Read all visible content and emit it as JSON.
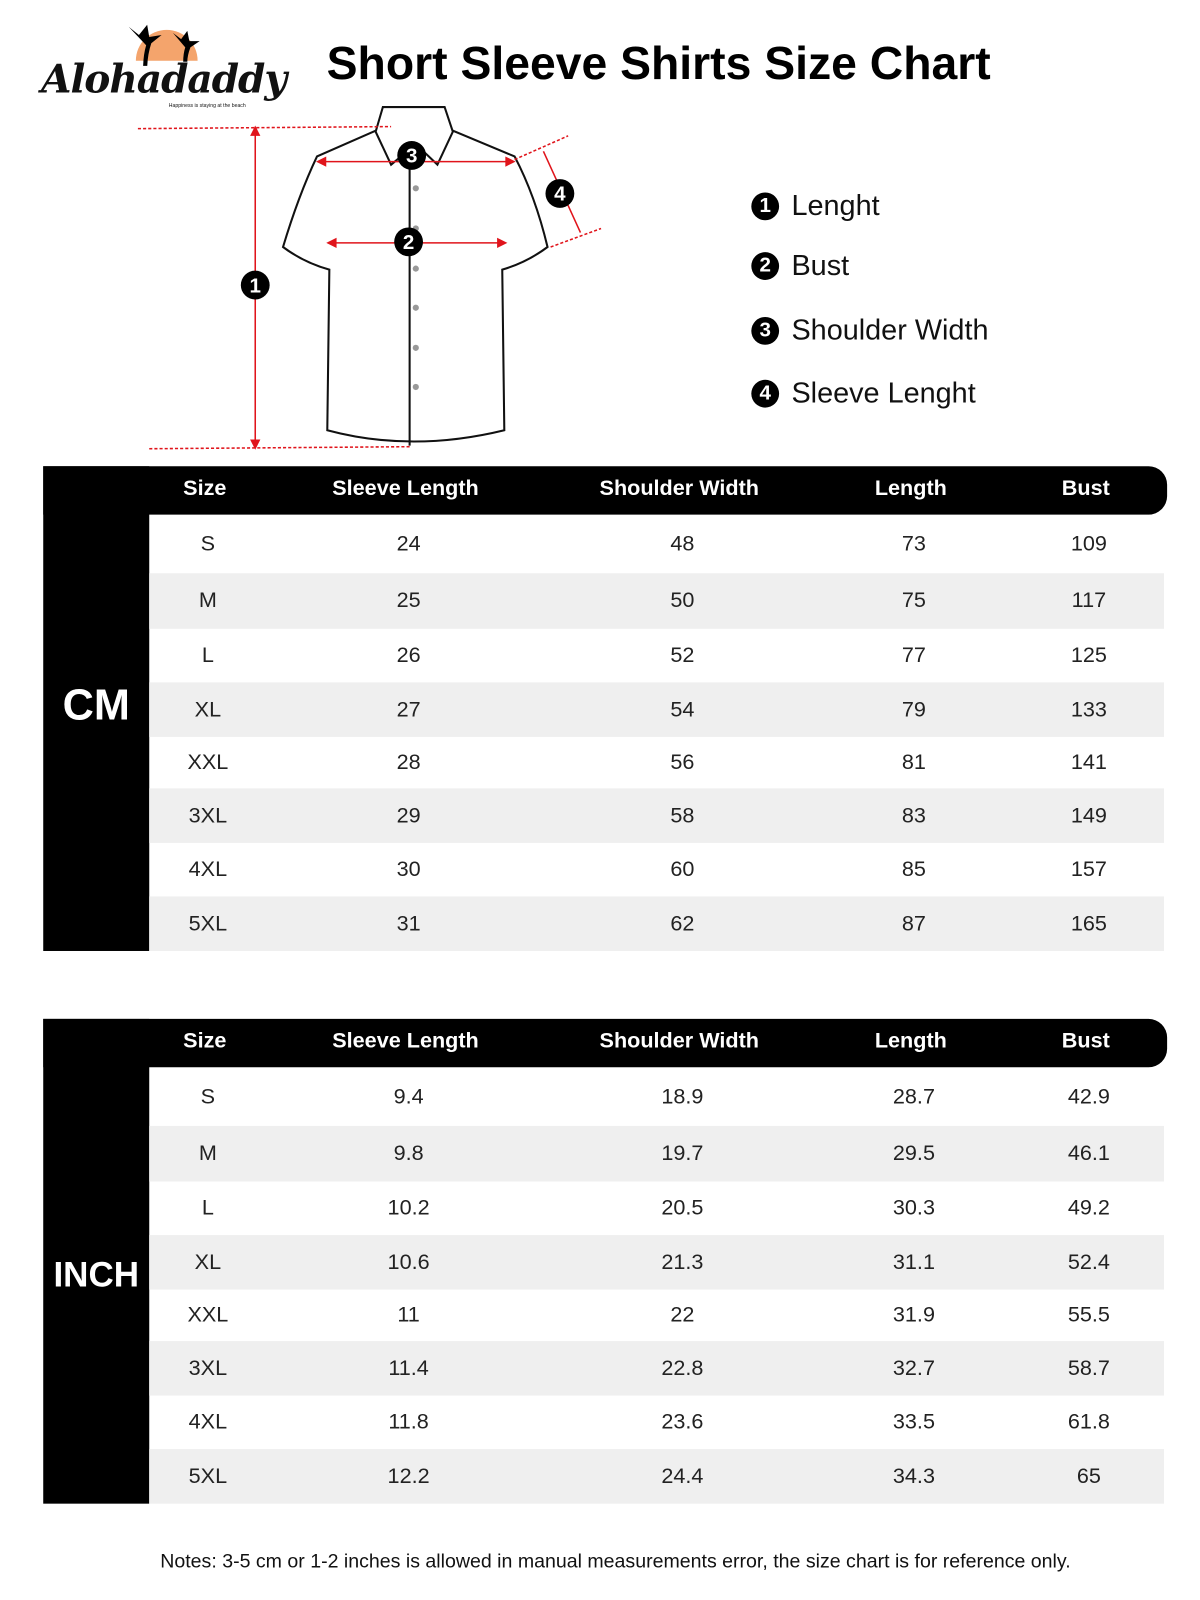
{
  "brand": {
    "name": "Alohadaddy",
    "tagline": "Happiness is staying at the beach",
    "sun_color": "#f4a46c"
  },
  "title": "Short Sleeve Shirts Size Chart",
  "diagram": {
    "markers": [
      "1",
      "2",
      "3",
      "4"
    ],
    "arrow_color": "#e0141b"
  },
  "legend": [
    {
      "num": "1",
      "label": "Lenght"
    },
    {
      "num": "2",
      "label": "Bust"
    },
    {
      "num": "3",
      "label": "Shoulder Width"
    },
    {
      "num": "4",
      "label": "Sleeve Lenght"
    }
  ],
  "columns": [
    "Size",
    "Sleeve Length",
    "Shoulder Width",
    "Length",
    "Bust"
  ],
  "tables": [
    {
      "unit": "CM",
      "rows": [
        [
          "S",
          "24",
          "48",
          "73",
          "109"
        ],
        [
          "M",
          "25",
          "50",
          "75",
          "117"
        ],
        [
          "L",
          "26",
          "52",
          "77",
          "125"
        ],
        [
          "XL",
          "27",
          "54",
          "79",
          "133"
        ],
        [
          "XXL",
          "28",
          "56",
          "81",
          "141"
        ],
        [
          "3XL",
          "29",
          "58",
          "83",
          "149"
        ],
        [
          "4XL",
          "30",
          "60",
          "85",
          "157"
        ],
        [
          "5XL",
          "31",
          "62",
          "87",
          "165"
        ]
      ]
    },
    {
      "unit": "INCH",
      "rows": [
        [
          "S",
          "9.4",
          "18.9",
          "28.7",
          "42.9"
        ],
        [
          "M",
          "9.8",
          "19.7",
          "29.5",
          "46.1"
        ],
        [
          "L",
          "10.2",
          "20.5",
          "30.3",
          "49.2"
        ],
        [
          "XL",
          "10.6",
          "21.3",
          "31.1",
          "52.4"
        ],
        [
          "XXL",
          "11",
          "22",
          "31.9",
          "55.5"
        ],
        [
          "3XL",
          "11.4",
          "22.8",
          "32.7",
          "58.7"
        ],
        [
          "4XL",
          "11.8",
          "23.6",
          "33.5",
          "61.8"
        ],
        [
          "5XL",
          "12.2",
          "24.4",
          "34.3",
          "65"
        ]
      ]
    }
  ],
  "notes": "Notes: 3-5 cm or 1-2 inches is allowed in manual measurements error, the size chart is for reference only."
}
